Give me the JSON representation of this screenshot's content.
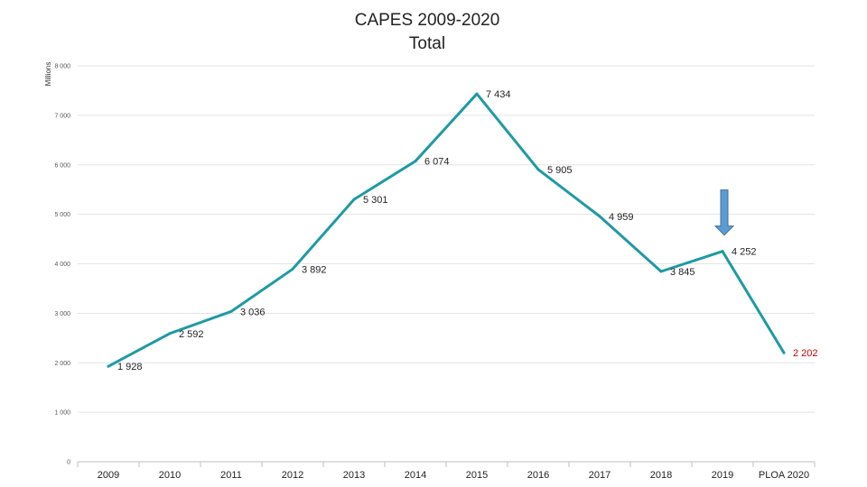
{
  "chart_data": {
    "type": "line",
    "title": "CAPES 2009-2020",
    "subtitle": "Total",
    "ylabel": "Millions",
    "xlabel": "",
    "ylim": [
      0,
      8000
    ],
    "yticks": [
      0,
      1000,
      2000,
      3000,
      4000,
      5000,
      6000,
      7000,
      8000
    ],
    "ytick_labels": [
      "0",
      "1 000",
      "2 000",
      "3 000",
      "4 000",
      "5 000",
      "6 000",
      "7 000",
      "8 000"
    ],
    "grid": true,
    "categories": [
      "2009",
      "2010",
      "2011",
      "2012",
      "2013",
      "2014",
      "2015",
      "2016",
      "2017",
      "2018",
      "2019",
      "PLOA 2020"
    ],
    "series": [
      {
        "name": "Total",
        "color": "#1f9aa3",
        "values": [
          1928,
          2592,
          3036,
          3892,
          5301,
          6074,
          7434,
          5905,
          4959,
          3845,
          4252,
          2202
        ],
        "labels": [
          "1 928",
          "2 592",
          "3 036",
          "3 892",
          "5 301",
          "6 074",
          "7 434",
          "5 905",
          "4 959",
          "3 845",
          "4 252",
          "2 202"
        ]
      }
    ],
    "highlight_label_color": "#c00000",
    "annotation": {
      "type": "down-arrow",
      "category": "2019",
      "color": "#5b9bd5"
    }
  }
}
